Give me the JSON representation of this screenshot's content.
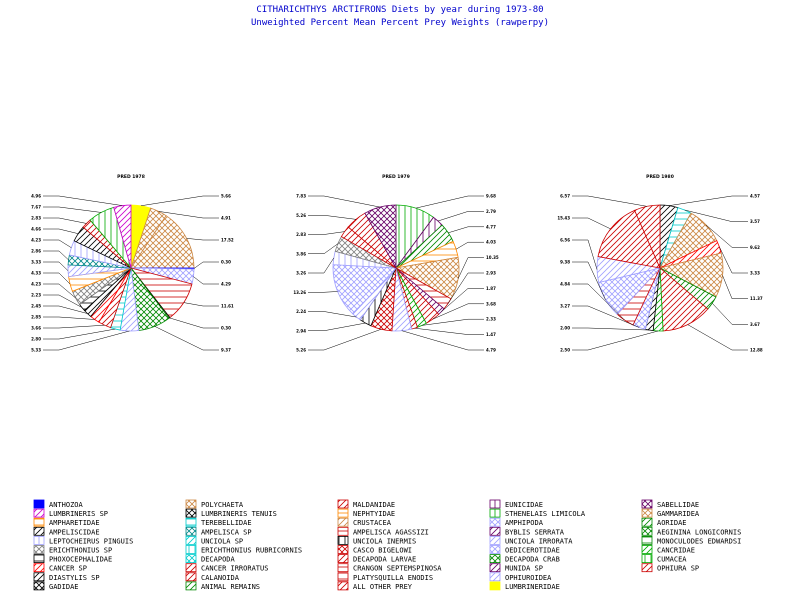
{
  "chart_data": {
    "type": "pie",
    "title": "CITHARICHTHYS ARCTIFRONS Diets by year during 1973-80",
    "subtitle": "Unweighted Percent Mean Percent Prey  Weights (rawperpy)",
    "categories": [
      "ANTHOZOA",
      "LUMBRINERIS SP",
      "AMPHARETIDAE",
      "AMPELISCIDAE",
      "LEPTOCHEIRUS PINGUIS",
      "ERICHTHONIUS SP",
      "PHOXOCEPHALIDAE",
      "CANCER SP",
      "DIASTYLIS SP",
      "GADIDAE",
      "POLYCHAETA",
      "LUMBRINERIS TENUIS",
      "TEREBELLIDAE",
      "AMPELISCA SP",
      "UNCIOLA SP",
      "ERICHTHONIUS RUBRICORNIS",
      "DECAPODA",
      "CANCER IRRORATUS",
      "CALANOIDA",
      "ANIMAL REMAINS",
      "MALDANIDAE",
      "NEPHTYIDAE",
      "CRUSTACEA",
      "AMPELISCA AGASSIZI",
      "UNCIOLA INERMIS",
      "CASCO BIGELOWI",
      "DECAPODA LARVAE",
      "CRANGON SEPTEMSPINOSA",
      "PLATYSQUILLA ENODIS",
      "ALL OTHER PREY",
      "EUNICIDAE",
      "STHENELAIS LIMICOLA",
      "AMPHIPODA",
      "BYBLIS SERRATA",
      "UNCIOLA IRRORATA",
      "OEDICEROTIDAE",
      "DECAPODA CRAB",
      "MUNIDA SP",
      "OPHIUROIDEA",
      "LUMBRINERIDAE",
      "SABELLIDAE",
      "GAMMARIDEA",
      "AORIDAE",
      "AEGININA LONGICORNIS",
      "MONOCULODES EDWARDSI",
      "CANCRIDAE",
      "CUMACEA",
      "OPHIURA SP"
    ],
    "series": [
      {
        "name": "PRED 1978",
        "slices": [
          {
            "prey": "LUMBRINERIDAE",
            "value": 5.66
          },
          {
            "prey": "POLYCHAETA",
            "value": 4.91
          },
          {
            "prey": "GAMMARIDEA",
            "value": 17.52
          },
          {
            "prey": "ANTHOZOA",
            "value": 0.3
          },
          {
            "prey": "AMPHIPODA",
            "value": 4.29
          },
          {
            "prey": "CRANGON SEPTEMSPINOSA",
            "value": 11.61
          },
          {
            "prey": "GADIDAE",
            "value": 0.3
          },
          {
            "prey": "DECAPODA CRAB",
            "value": 9.37
          },
          {
            "prey": "OPHIUROIDEA",
            "value": 5.33
          },
          {
            "prey": "TEREBELLIDAE",
            "value": 2.8
          },
          {
            "prey": "OPHIURA SP",
            "value": 3.66
          },
          {
            "prey": "CANCER SP",
            "value": 2.85
          },
          {
            "prey": "DIASTYLIS SP",
            "value": 2.45
          },
          {
            "prey": "PHOXOCEPHALIDAE",
            "value": 2.23
          },
          {
            "prey": "ERICHTHONIUS SP",
            "value": 4.23
          },
          {
            "prey": "AMPHARETIDAE",
            "value": 4.33
          },
          {
            "prey": "UNCIOLA IRRORATA",
            "value": 3.33
          },
          {
            "prey": "AMPELISCA SP",
            "value": 2.86
          },
          {
            "prey": "LEPTOCHEIRUS PINGUIS",
            "value": 4.23
          },
          {
            "prey": "AMPELISCIDAE",
            "value": 4.66
          },
          {
            "prey": "MALDANIDAE",
            "value": 2.83
          },
          {
            "prey": "STHENELAIS LIMICOLA",
            "value": 7.67
          },
          {
            "prey": "LUMBRINERIS SP",
            "value": 4.96
          }
        ]
      },
      {
        "name": "PRED 1979",
        "slices": [
          {
            "prey": "STHENELAIS LIMICOLA",
            "value": 9.68
          },
          {
            "prey": "EUNICIDAE",
            "value": 2.79
          },
          {
            "prey": "AORIDAE",
            "value": 4.77
          },
          {
            "prey": "NEPHTYIDAE",
            "value": 4.03
          },
          {
            "prey": "GAMMARIDEA",
            "value": 10.35
          },
          {
            "prey": "CRANGON SEPTEMSPINOSA",
            "value": 2.93
          },
          {
            "prey": "MUNIDA SP",
            "value": 1.87
          },
          {
            "prey": "DECAPODA LARVAE",
            "value": 3.68
          },
          {
            "prey": "CANCRIDAE",
            "value": 2.33
          },
          {
            "prey": "OPHIURA SP",
            "value": 1.47
          },
          {
            "prey": "OPHIUROIDEA",
            "value": 4.79
          },
          {
            "prey": "CASCO BIGELOWI",
            "value": 5.26
          },
          {
            "prey": "UNCIOLA INERMIS",
            "value": 2.94
          },
          {
            "prey": "UNCIOLA IRRORATA",
            "value": 2.24
          },
          {
            "prey": "AMPHIPODA",
            "value": 13.26
          },
          {
            "prey": "LEPTOCHEIRUS PINGUIS",
            "value": 3.26
          },
          {
            "prey": "ERICHTHONIUS SP",
            "value": 3.86
          },
          {
            "prey": "CANCER IRRORATUS",
            "value": 2.83
          },
          {
            "prey": "MALDANIDAE",
            "value": 5.26
          },
          {
            "prey": "SABELLIDAE",
            "value": 7.83
          }
        ]
      },
      {
        "name": "PRED 1980",
        "slices": [
          {
            "prey": "AMPELISCIDAE",
            "value": 4.57
          },
          {
            "prey": "TEREBELLIDAE",
            "value": 3.57
          },
          {
            "prey": "POLYCHAETA",
            "value": 9.62
          },
          {
            "prey": "CANCER SP",
            "value": 3.33
          },
          {
            "prey": "GAMMARIDEA",
            "value": 11.37
          },
          {
            "prey": "ANIMAL REMAINS",
            "value": 3.67
          },
          {
            "prey": "OPHIURA SP",
            "value": 12.88
          },
          {
            "prey": "CANCRIDAE",
            "value": 2.5
          },
          {
            "prey": "DIASTYLIS SP",
            "value": 2.0
          },
          {
            "prey": "OEDICEROTIDAE",
            "value": 3.27
          },
          {
            "prey": "CRANGON SEPTEMSPINOSA",
            "value": 4.84
          },
          {
            "prey": "AMPHIPODA",
            "value": 9.38
          },
          {
            "prey": "UNCIOLA IRRORATA",
            "value": 6.56
          },
          {
            "prey": "MALDANIDAE",
            "value": 15.43
          },
          {
            "prey": "ALL OTHER PREY",
            "value": 6.57
          }
        ]
      }
    ],
    "legend_position": "bottom",
    "grid": false
  },
  "legend_styles": {
    "ANTHOZOA": {
      "color": "#0000ff",
      "pattern": "solid"
    },
    "LUMBRINERIS SP": {
      "color": "#cc00cc",
      "pattern": "diag"
    },
    "AMPHARETIDAE": {
      "color": "#ff8800",
      "pattern": "horiz"
    },
    "AMPELISCIDAE": {
      "color": "#000000",
      "pattern": "diag"
    },
    "LEPTOCHEIRUS PINGUIS": {
      "color": "#a0a0ff",
      "pattern": "vert"
    },
    "ERICHTHONIUS SP": {
      "color": "#808080",
      "pattern": "cross"
    },
    "PHOXOCEPHALIDAE": {
      "color": "#000000",
      "pattern": "horiz"
    },
    "CANCER SP": {
      "color": "#ff0000",
      "pattern": "diag"
    },
    "DIASTYLIS SP": {
      "color": "#000000",
      "pattern": "diag"
    },
    "GADIDAE": {
      "color": "#000000",
      "pattern": "cross"
    },
    "POLYCHAETA": {
      "color": "#cc8844",
      "pattern": "cross"
    },
    "LUMBRINERIS TENUIS": {
      "color": "#000000",
      "pattern": "cross"
    },
    "TEREBELLIDAE": {
      "color": "#00cccc",
      "pattern": "horiz"
    },
    "AMPELISCA SP": {
      "color": "#008888",
      "pattern": "cross"
    },
    "UNCIOLA SP": {
      "color": "#00cccc",
      "pattern": "diag"
    },
    "ERICHTHONIUS RUBRICORNIS": {
      "color": "#00cccc",
      "pattern": "vert"
    },
    "DECAPODA": {
      "color": "#00cccc",
      "pattern": "cross"
    },
    "CANCER IRRORATUS": {
      "color": "#cc0000",
      "pattern": "diag"
    },
    "CALANOIDA": {
      "color": "#cc0000",
      "pattern": "diag"
    },
    "ANIMAL REMAINS": {
      "color": "#008800",
      "pattern": "diag"
    },
    "MALDANIDAE": {
      "color": "#cc0000",
      "pattern": "diag"
    },
    "NEPHTYIDAE": {
      "color": "#ff8800",
      "pattern": "horiz"
    },
    "CRUSTACEA": {
      "color": "#cc8844",
      "pattern": "diag"
    },
    "AMPELISCA AGASSIZI": {
      "color": "#cc0000",
      "pattern": "horiz"
    },
    "UNCIOLA INERMIS": {
      "color": "#000000",
      "pattern": "vert"
    },
    "CASCO BIGELOWI": {
      "color": "#cc0000",
      "pattern": "cross"
    },
    "DECAPODA LARVAE": {
      "color": "#cc0000",
      "pattern": "diag"
    },
    "CRANGON SEPTEMSPINOSA": {
      "color": "#cc0000",
      "pattern": "horiz"
    },
    "PLATYSQUILLA ENODIS": {
      "color": "#cc0000",
      "pattern": "horiz"
    },
    "ALL OTHER PREY": {
      "color": "#cc0000",
      "pattern": "diag"
    },
    "EUNICIDAE": {
      "color": "#660066",
      "pattern": "vert"
    },
    "STHENELAIS LIMICOLA": {
      "color": "#00aa00",
      "pattern": "vert"
    },
    "AMPHIPODA": {
      "color": "#a0a0ff",
      "pattern": "cross"
    },
    "BYBLIS SERRATA": {
      "color": "#660066",
      "pattern": "diag"
    },
    "UNCIOLA IRRORATA": {
      "color": "#a0a0ff",
      "pattern": "diag"
    },
    "OEDICEROTIDAE": {
      "color": "#a0a0ff",
      "pattern": "cross"
    },
    "DECAPODA CRAB": {
      "color": "#008800",
      "pattern": "cross"
    },
    "MUNIDA SP": {
      "color": "#660066",
      "pattern": "diag"
    },
    "OPHIUROIDEA": {
      "color": "#a0a0ff",
      "pattern": "diag"
    },
    "LUMBRINERIDAE": {
      "color": "#ffff00",
      "pattern": "solid"
    },
    "SABELLIDAE": {
      "color": "#660066",
      "pattern": "cross"
    },
    "GAMMARIDEA": {
      "color": "#cc8844",
      "pattern": "cross"
    },
    "AORIDAE": {
      "color": "#008800",
      "pattern": "diag"
    },
    "AEGININA LONGICORNIS": {
      "color": "#008800",
      "pattern": "cross"
    },
    "MONOCULODES EDWARDSI": {
      "color": "#008800",
      "pattern": "horiz"
    },
    "CANCRIDAE": {
      "color": "#00aa00",
      "pattern": "diag"
    },
    "CUMACEA": {
      "color": "#00aa00",
      "pattern": "vert"
    },
    "OPHIURA SP": {
      "color": "#cc0000",
      "pattern": "diag"
    }
  }
}
